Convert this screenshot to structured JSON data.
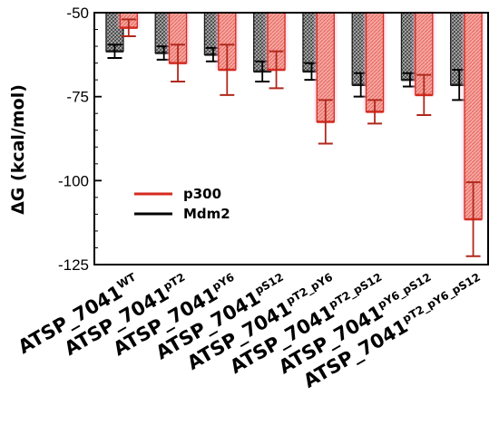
{
  "chart_data": {
    "type": "bar",
    "orientation": "downward",
    "ylabel": "ΔG (kcal/mol)",
    "ylim": [
      -125,
      -50
    ],
    "yticks": [
      -50,
      -75,
      -100,
      -125
    ],
    "grid": false,
    "legend_position": "left-middle",
    "categories": [
      {
        "base": "ATSP_7041",
        "sup": "WT"
      },
      {
        "base": "ATSP_7041",
        "sup": "pT2"
      },
      {
        "base": "ATSP_7041",
        "sup": "pY6"
      },
      {
        "base": "ATSP_7041",
        "sup": "pS12"
      },
      {
        "base": "ATSP_7041",
        "sup": "pT2_pY6"
      },
      {
        "base": "ATSP_7041",
        "sup": "pT2_pS12"
      },
      {
        "base": "ATSP_7041",
        "sup": "pY6_pS12"
      },
      {
        "base": "ATSP_7041",
        "sup": "pT2_pY6_pS12"
      }
    ],
    "series": [
      {
        "name": "Mdm2",
        "color": "#6b6b6b",
        "values": [
          -61.5,
          -62.0,
          -62.5,
          -67.5,
          -67.5,
          -71.5,
          -70.0,
          -71.5
        ],
        "errors": [
          2.0,
          2.0,
          2.0,
          3.0,
          2.5,
          3.5,
          2.0,
          4.5
        ]
      },
      {
        "name": "p300",
        "color": "#e8382c",
        "values": [
          -54.5,
          -65.0,
          -67.0,
          -67.0,
          -82.5,
          -79.5,
          -74.5,
          -111.5
        ],
        "errors": [
          2.5,
          5.5,
          7.5,
          5.5,
          6.5,
          3.5,
          6.0,
          11.0
        ]
      }
    ]
  }
}
